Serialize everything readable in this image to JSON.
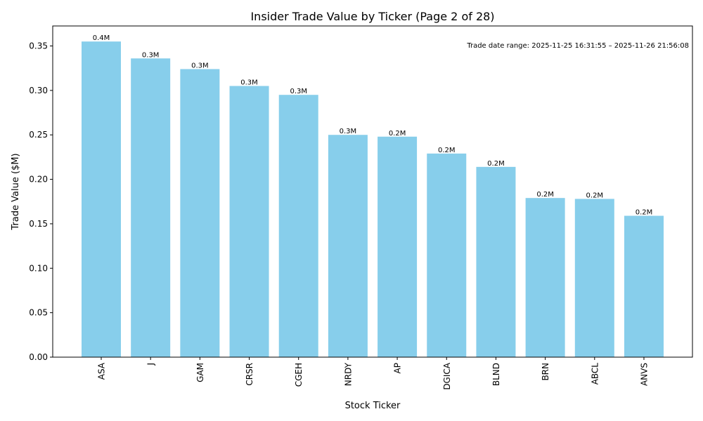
{
  "chart_data": {
    "type": "bar",
    "title": "Insider Trade Value by Ticker (Page 2 of 28)",
    "xlabel": "Stock Ticker",
    "ylabel": "Trade Value ($M)",
    "annotation": "Trade date range: 2025-11-25 16:31:55 – 2025-11-26 21:56:08",
    "categories": [
      "ASA",
      "J",
      "GAM",
      "CRSR",
      "CGEH",
      "NRDY",
      "AP",
      "DGICA",
      "BLND",
      "BRN",
      "ABCL",
      "ANVS"
    ],
    "values": [
      0.355,
      0.336,
      0.324,
      0.305,
      0.295,
      0.25,
      0.248,
      0.229,
      0.214,
      0.179,
      0.178,
      0.159
    ],
    "data_labels": [
      "0.4M",
      "0.3M",
      "0.3M",
      "0.3M",
      "0.3M",
      "0.3M",
      "0.2M",
      "0.2M",
      "0.2M",
      "0.2M",
      "0.2M",
      "0.2M"
    ],
    "ylim": [
      0,
      0.3725
    ],
    "yticks": [
      0.0,
      0.05,
      0.1,
      0.15,
      0.2,
      0.25,
      0.3,
      0.35
    ],
    "ytick_labels": [
      "0.00",
      "0.05",
      "0.10",
      "0.15",
      "0.20",
      "0.25",
      "0.30",
      "0.35"
    ],
    "bar_color": "#87ceeb",
    "grid": false
  }
}
